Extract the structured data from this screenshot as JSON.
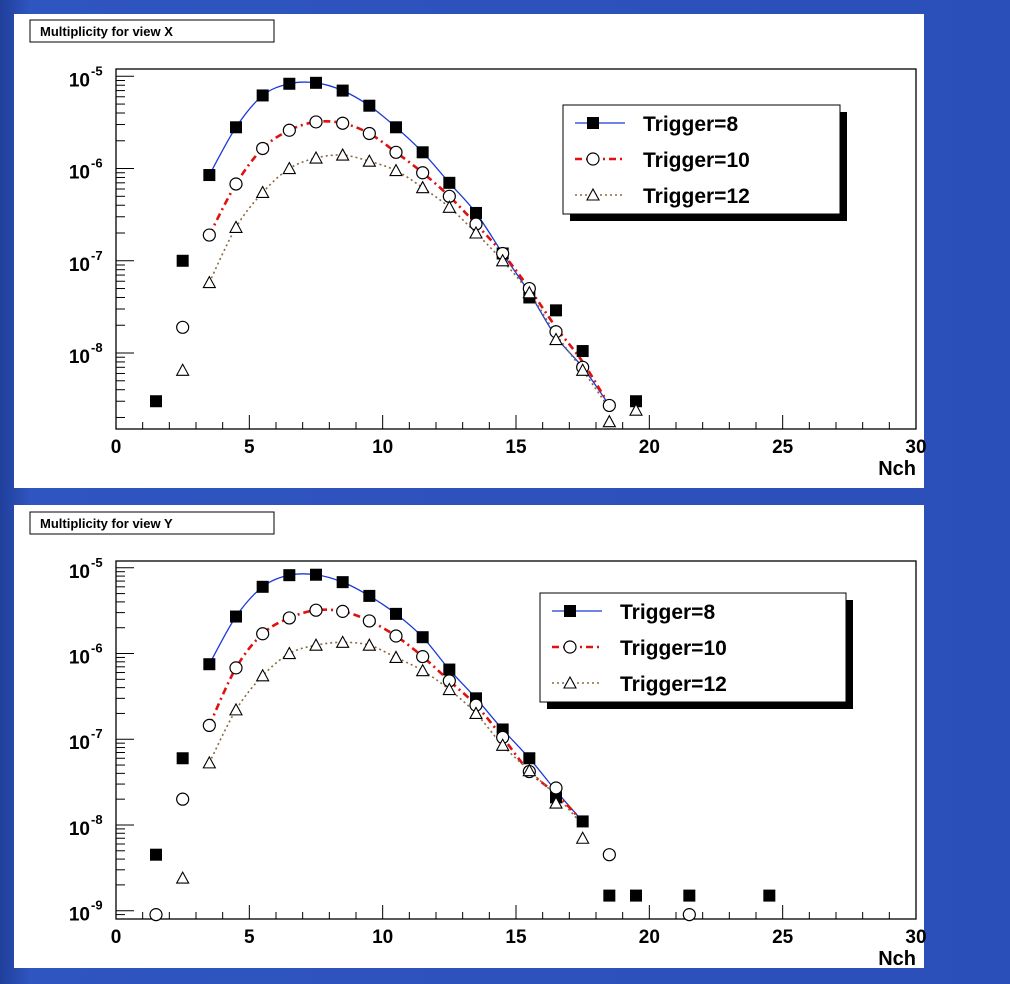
{
  "chart_data": [
    {
      "type": "scatter",
      "title": "Multiplicity for view X",
      "xlabel": "Nch",
      "ylabel": "",
      "xlim": [
        0,
        30
      ],
      "ylim": [
        1.5e-09,
        1.2e-05
      ],
      "log_y": true,
      "grid": false,
      "legend_position": "top-right",
      "x_ticks": [
        "0",
        "5",
        "10",
        "15",
        "20",
        "25",
        "30"
      ],
      "y_ticks": [
        {
          "base": "10",
          "exp": "-5",
          "value": 1e-05
        },
        {
          "base": "10",
          "exp": "-6",
          "value": 1e-06
        },
        {
          "base": "10",
          "exp": "-7",
          "value": 1e-07
        },
        {
          "base": "10",
          "exp": "-8",
          "value": 1e-08
        }
      ],
      "series": [
        {
          "name": "Trigger=8",
          "marker": "filled-square",
          "line_style": "solid",
          "line_color": "#1a3ad8",
          "points": [
            [
              1.5,
              3e-09
            ],
            [
              2.5,
              1e-07
            ],
            [
              3.5,
              8.5e-07
            ],
            [
              4.5,
              2.8e-06
            ],
            [
              5.5,
              6.2e-06
            ],
            [
              6.5,
              8.3e-06
            ],
            [
              7.5,
              8.5e-06
            ],
            [
              8.5,
              7e-06
            ],
            [
              9.5,
              4.8e-06
            ],
            [
              10.5,
              2.8e-06
            ],
            [
              11.5,
              1.5e-06
            ],
            [
              12.5,
              7e-07
            ],
            [
              13.5,
              3.3e-07
            ],
            [
              14.5,
              1.2e-07
            ],
            [
              15.5,
              4e-08
            ],
            [
              16.5,
              2.9e-08
            ],
            [
              17.5,
              1.05e-08
            ],
            [
              19.5,
              3e-09
            ]
          ],
          "fit": [
            [
              3.5,
              8.5e-07
            ],
            [
              4.5,
              2.8e-06
            ],
            [
              5.5,
              6.2e-06
            ],
            [
              6.5,
              8.3e-06
            ],
            [
              7.5,
              8.5e-06
            ],
            [
              8.5,
              7e-06
            ],
            [
              9.5,
              4.8e-06
            ],
            [
              10.5,
              2.8e-06
            ],
            [
              11.5,
              1.5e-06
            ],
            [
              12.5,
              7e-07
            ],
            [
              13.5,
              3.3e-07
            ],
            [
              14.5,
              1.2e-07
            ],
            [
              15.5,
              4.5e-08
            ],
            [
              16.5,
              1.5e-08
            ],
            [
              17.5,
              7e-09
            ],
            [
              18.5,
              2.7e-09
            ]
          ]
        },
        {
          "name": "Trigger=10",
          "marker": "open-circle",
          "line_style": "dashed",
          "line_color": "#e01010",
          "points": [
            [
              2.5,
              1.9e-08
            ],
            [
              3.5,
              1.9e-07
            ],
            [
              4.5,
              6.8e-07
            ],
            [
              5.5,
              1.65e-06
            ],
            [
              6.5,
              2.6e-06
            ],
            [
              7.5,
              3.2e-06
            ],
            [
              8.5,
              3.1e-06
            ],
            [
              9.5,
              2.4e-06
            ],
            [
              10.5,
              1.5e-06
            ],
            [
              11.5,
              9e-07
            ],
            [
              12.5,
              5e-07
            ],
            [
              13.5,
              2.5e-07
            ],
            [
              14.5,
              1.2e-07
            ],
            [
              15.5,
              5e-08
            ],
            [
              16.5,
              1.7e-08
            ],
            [
              17.5,
              7e-09
            ],
            [
              18.5,
              2.7e-09
            ]
          ],
          "fit": [
            [
              3.5,
              1.9e-07
            ],
            [
              4.5,
              6.8e-07
            ],
            [
              5.5,
              1.65e-06
            ],
            [
              6.5,
              2.6e-06
            ],
            [
              7.5,
              3.2e-06
            ],
            [
              8.5,
              3.1e-06
            ],
            [
              9.5,
              2.4e-06
            ],
            [
              10.5,
              1.5e-06
            ],
            [
              11.5,
              9e-07
            ],
            [
              12.5,
              5e-07
            ],
            [
              13.5,
              2.5e-07
            ],
            [
              14.5,
              1.2e-07
            ],
            [
              15.5,
              5e-08
            ],
            [
              16.5,
              1.9e-08
            ],
            [
              17.5,
              8e-09
            ],
            [
              18.5,
              2.7e-09
            ]
          ]
        },
        {
          "name": "Trigger=12",
          "marker": "open-triangle",
          "line_style": "dotted",
          "line_color": "#8b6a3e",
          "points": [
            [
              2.5,
              6.5e-09
            ],
            [
              3.5,
              5.8e-08
            ],
            [
              4.5,
              2.3e-07
            ],
            [
              5.5,
              5.5e-07
            ],
            [
              6.5,
              1e-06
            ],
            [
              7.5,
              1.3e-06
            ],
            [
              8.5,
              1.4e-06
            ],
            [
              9.5,
              1.2e-06
            ],
            [
              10.5,
              9.5e-07
            ],
            [
              11.5,
              6.2e-07
            ],
            [
              12.5,
              3.8e-07
            ],
            [
              13.5,
              2e-07
            ],
            [
              14.5,
              1e-07
            ],
            [
              15.5,
              4.5e-08
            ],
            [
              16.5,
              1.4e-08
            ],
            [
              17.5,
              6.5e-09
            ],
            [
              18.5,
              1.8e-09
            ],
            [
              19.5,
              2.4e-09
            ]
          ],
          "fit": [
            [
              3.5,
              5.8e-08
            ],
            [
              4.5,
              2.3e-07
            ],
            [
              5.5,
              5.5e-07
            ],
            [
              6.5,
              1e-06
            ],
            [
              7.5,
              1.3e-06
            ],
            [
              8.5,
              1.4e-06
            ],
            [
              9.5,
              1.2e-06
            ],
            [
              10.5,
              9.5e-07
            ],
            [
              11.5,
              6.2e-07
            ],
            [
              12.5,
              3.8e-07
            ],
            [
              13.5,
              2e-07
            ],
            [
              14.5,
              1e-07
            ],
            [
              15.5,
              4.5e-08
            ],
            [
              16.5,
              1.6e-08
            ],
            [
              17.5,
              6.5e-09
            ],
            [
              18.5,
              2.5e-09
            ]
          ]
        }
      ]
    },
    {
      "type": "scatter",
      "title": "Multiplicity for view Y",
      "xlabel": "Nch",
      "ylabel": "",
      "xlim": [
        0,
        30
      ],
      "ylim": [
        8e-10,
        1.2e-05
      ],
      "log_y": true,
      "grid": false,
      "legend_position": "top-right",
      "x_ticks": [
        "0",
        "5",
        "10",
        "15",
        "20",
        "25",
        "30"
      ],
      "y_ticks": [
        {
          "base": "10",
          "exp": "-5",
          "value": 1e-05
        },
        {
          "base": "10",
          "exp": "-6",
          "value": 1e-06
        },
        {
          "base": "10",
          "exp": "-7",
          "value": 1e-07
        },
        {
          "base": "10",
          "exp": "-8",
          "value": 1e-08
        },
        {
          "base": "10",
          "exp": "-9",
          "value": 1e-09
        }
      ],
      "series": [
        {
          "name": "Trigger=8",
          "marker": "filled-square",
          "line_style": "solid",
          "line_color": "#1a3ad8",
          "points": [
            [
              1.5,
              4.5e-09
            ],
            [
              2.5,
              6e-08
            ],
            [
              3.5,
              7.5e-07
            ],
            [
              4.5,
              2.7e-06
            ],
            [
              5.5,
              6e-06
            ],
            [
              6.5,
              8.2e-06
            ],
            [
              7.5,
              8.3e-06
            ],
            [
              8.5,
              6.8e-06
            ],
            [
              9.5,
              4.7e-06
            ],
            [
              10.5,
              2.9e-06
            ],
            [
              11.5,
              1.55e-06
            ],
            [
              12.5,
              6.5e-07
            ],
            [
              13.5,
              3e-07
            ],
            [
              14.5,
              1.3e-07
            ],
            [
              15.5,
              6e-08
            ],
            [
              16.5,
              2.1e-08
            ],
            [
              17.5,
              1.1e-08
            ],
            [
              18.5,
              1.5e-09
            ],
            [
              19.5,
              1.5e-09
            ],
            [
              21.5,
              1.5e-09
            ],
            [
              24.5,
              1.5e-09
            ]
          ],
          "fit": [
            [
              3.5,
              7.5e-07
            ],
            [
              4.5,
              2.7e-06
            ],
            [
              5.5,
              6e-06
            ],
            [
              6.5,
              8.2e-06
            ],
            [
              7.5,
              8.3e-06
            ],
            [
              8.5,
              6.8e-06
            ],
            [
              9.5,
              4.7e-06
            ],
            [
              10.5,
              2.9e-06
            ],
            [
              11.5,
              1.55e-06
            ],
            [
              12.5,
              6.5e-07
            ],
            [
              13.5,
              3e-07
            ],
            [
              14.5,
              1.3e-07
            ],
            [
              15.5,
              6e-08
            ],
            [
              16.5,
              2.5e-08
            ],
            [
              17.5,
              1.1e-08
            ]
          ]
        },
        {
          "name": "Trigger=10",
          "marker": "open-circle",
          "line_style": "dashed",
          "line_color": "#e01010",
          "points": [
            [
              1.5,
              9e-10
            ],
            [
              2.5,
              2e-08
            ],
            [
              3.5,
              1.45e-07
            ],
            [
              4.5,
              6.8e-07
            ],
            [
              5.5,
              1.7e-06
            ],
            [
              6.5,
              2.6e-06
            ],
            [
              7.5,
              3.2e-06
            ],
            [
              8.5,
              3.1e-06
            ],
            [
              9.5,
              2.4e-06
            ],
            [
              10.5,
              1.6e-06
            ],
            [
              11.5,
              9.2e-07
            ],
            [
              12.5,
              4.8e-07
            ],
            [
              13.5,
              2.5e-07
            ],
            [
              14.5,
              1.05e-07
            ],
            [
              15.5,
              4.2e-08
            ],
            [
              16.5,
              2.7e-08
            ],
            [
              18.5,
              4.5e-09
            ],
            [
              21.5,
              9e-10
            ]
          ],
          "fit": [
            [
              3.5,
              1.45e-07
            ],
            [
              4.5,
              6.8e-07
            ],
            [
              5.5,
              1.7e-06
            ],
            [
              6.5,
              2.6e-06
            ],
            [
              7.5,
              3.2e-06
            ],
            [
              8.5,
              3.1e-06
            ],
            [
              9.5,
              2.4e-06
            ],
            [
              10.5,
              1.6e-06
            ],
            [
              11.5,
              9.2e-07
            ],
            [
              12.5,
              4.8e-07
            ],
            [
              13.5,
              2.5e-07
            ],
            [
              14.5,
              1.05e-07
            ],
            [
              15.5,
              4.2e-08
            ],
            [
              16.5,
              2.3e-08
            ],
            [
              17.5,
              1.1e-08
            ]
          ]
        },
        {
          "name": "Trigger=12",
          "marker": "open-triangle",
          "line_style": "dotted",
          "line_color": "#8b6a3e",
          "points": [
            [
              2.5,
              2.4e-09
            ],
            [
              3.5,
              5.3e-08
            ],
            [
              4.5,
              2.2e-07
            ],
            [
              5.5,
              5.5e-07
            ],
            [
              6.5,
              1e-06
            ],
            [
              7.5,
              1.25e-06
            ],
            [
              8.5,
              1.35e-06
            ],
            [
              9.5,
              1.25e-06
            ],
            [
              10.5,
              9e-07
            ],
            [
              11.5,
              6.3e-07
            ],
            [
              12.5,
              3.8e-07
            ],
            [
              13.5,
              2e-07
            ],
            [
              14.5,
              8.5e-08
            ],
            [
              15.5,
              4.3e-08
            ],
            [
              16.5,
              1.8e-08
            ],
            [
              17.5,
              7e-09
            ]
          ],
          "fit": [
            [
              3.5,
              5.3e-08
            ],
            [
              4.5,
              2.2e-07
            ],
            [
              5.5,
              5.5e-07
            ],
            [
              6.5,
              1e-06
            ],
            [
              7.5,
              1.25e-06
            ],
            [
              8.5,
              1.35e-06
            ],
            [
              9.5,
              1.25e-06
            ],
            [
              10.5,
              9e-07
            ],
            [
              11.5,
              6.3e-07
            ],
            [
              12.5,
              3.8e-07
            ],
            [
              13.5,
              2e-07
            ],
            [
              14.5,
              8.5e-08
            ],
            [
              15.5,
              4.3e-08
            ],
            [
              16.5,
              2.2e-08
            ],
            [
              17.5,
              1e-08
            ]
          ]
        }
      ]
    }
  ]
}
